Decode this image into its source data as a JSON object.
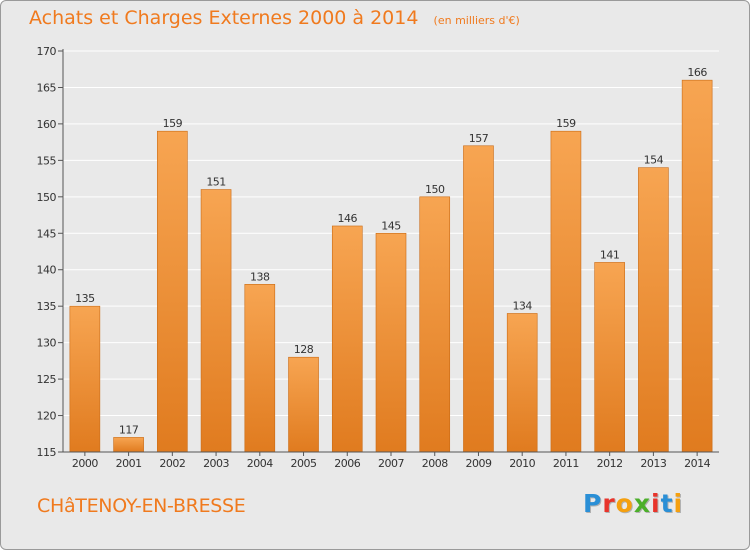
{
  "header": {
    "title": "Achats et Charges Externes 2000 à 2014",
    "subtitle": "(en milliers d'€)"
  },
  "footer": {
    "commune": "CHâTENOY-EN-BRESSE",
    "logo_text": "Proxiti",
    "logo_colors": [
      "#2a8fd6",
      "#e8342b",
      "#f5a00f",
      "#4caf2a",
      "#e8342b",
      "#2a8fd6",
      "#f5a00f"
    ]
  },
  "colors": {
    "bar_light": "#f7a552",
    "bar_dark": "#e07b1f",
    "accent": "#f07a1e",
    "background": "#e9e9e9",
    "grid": "#ffffff"
  },
  "chart_data": {
    "type": "bar",
    "title": "Achats et Charges Externes 2000 à 2014",
    "subtitle": "(en milliers d'€)",
    "categories": [
      "2000",
      "2001",
      "2002",
      "2003",
      "2004",
      "2005",
      "2006",
      "2007",
      "2008",
      "2009",
      "2010",
      "2011",
      "2012",
      "2013",
      "2014"
    ],
    "values": [
      135,
      117,
      159,
      151,
      138,
      128,
      146,
      145,
      150,
      157,
      134,
      159,
      141,
      154,
      166
    ],
    "ylim": [
      115,
      170
    ],
    "yticks": [
      115,
      120,
      125,
      130,
      135,
      140,
      145,
      150,
      155,
      160,
      165,
      170
    ],
    "grid": true,
    "xlabel": "",
    "ylabel": ""
  }
}
